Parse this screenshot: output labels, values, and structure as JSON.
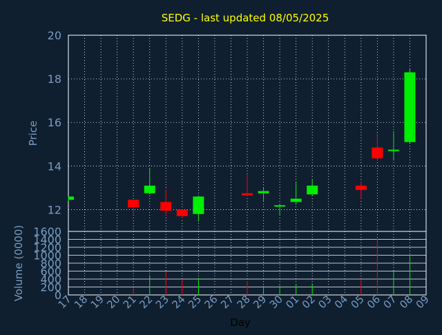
{
  "chart_data": [
    {
      "type": "candlestick",
      "title": "SEDG - last updated 08/05/2025",
      "ylabel": "Price",
      "ylim": [
        11,
        20
      ],
      "yticks": [
        12,
        14,
        16,
        18,
        20
      ],
      "grid": true,
      "colors": {
        "up": "#00ee00",
        "down": "#ff0000",
        "title": "#ffff00",
        "axis_text": "#7a9cc0",
        "background": "#0f1f30",
        "grid": "#ffffff"
      },
      "categories": [
        "17",
        "18",
        "19",
        "20",
        "21",
        "22",
        "23",
        "24",
        "25",
        "26",
        "27",
        "28",
        "29",
        "30",
        "01",
        "02",
        "03",
        "04",
        "05",
        "06",
        "07",
        "08",
        "09"
      ],
      "candles": [
        {
          "x": "17",
          "open": 12.45,
          "high": 12.6,
          "low": 12.4,
          "close": 12.6
        },
        {
          "x": "21",
          "open": 12.45,
          "high": 12.45,
          "low": 11.8,
          "close": 12.1
        },
        {
          "x": "22",
          "open": 12.75,
          "high": 13.9,
          "low": 12.7,
          "close": 13.1
        },
        {
          "x": "23",
          "open": 12.35,
          "high": 12.9,
          "low": 11.7,
          "close": 11.95
        },
        {
          "x": "24",
          "open": 12.0,
          "high": 12.0,
          "low": 11.6,
          "close": 11.7
        },
        {
          "x": "25",
          "open": 11.8,
          "high": 12.6,
          "low": 11.45,
          "close": 12.6
        },
        {
          "x": "28",
          "open": 12.75,
          "high": 13.6,
          "low": 12.6,
          "close": 12.65
        },
        {
          "x": "29",
          "open": 12.75,
          "high": 13.0,
          "low": 12.4,
          "close": 12.85
        },
        {
          "x": "30",
          "open": 12.15,
          "high": 12.25,
          "low": 11.75,
          "close": 12.2
        },
        {
          "x": "01",
          "open": 12.35,
          "high": 13.3,
          "low": 12.25,
          "close": 12.5
        },
        {
          "x": "02",
          "open": 12.7,
          "high": 13.4,
          "low": 12.65,
          "close": 13.1
        },
        {
          "x": "05",
          "open": 13.1,
          "high": 13.3,
          "low": 12.5,
          "close": 12.9
        },
        {
          "x": "06",
          "open": 14.85,
          "high": 15.5,
          "low": 14.25,
          "close": 14.35
        },
        {
          "x": "07",
          "open": 14.7,
          "high": 15.6,
          "low": 14.25,
          "close": 14.75
        },
        {
          "x": "08",
          "open": 15.1,
          "high": 18.45,
          "low": 15.05,
          "close": 18.3
        }
      ]
    },
    {
      "type": "bar",
      "ylabel": "Volume (0000)",
      "xlabel": "Day",
      "ylim": [
        0,
        1600
      ],
      "yticks": [
        0,
        200,
        400,
        600,
        800,
        1000,
        1200,
        1400,
        1600
      ],
      "grid": true,
      "bars": [
        {
          "x": "21",
          "value": 190,
          "direction": "down"
        },
        {
          "x": "22",
          "value": 500,
          "direction": "up"
        },
        {
          "x": "23",
          "value": 590,
          "direction": "down"
        },
        {
          "x": "24",
          "value": 400,
          "direction": "down"
        },
        {
          "x": "25",
          "value": 430,
          "direction": "up"
        },
        {
          "x": "28",
          "value": 350,
          "direction": "down"
        },
        {
          "x": "29",
          "value": 230,
          "direction": "up"
        },
        {
          "x": "30",
          "value": 240,
          "direction": "up"
        },
        {
          "x": "01",
          "value": 280,
          "direction": "up"
        },
        {
          "x": "02",
          "value": 290,
          "direction": "up"
        },
        {
          "x": "05",
          "value": 400,
          "direction": "down"
        },
        {
          "x": "06",
          "value": 1420,
          "direction": "down"
        },
        {
          "x": "07",
          "value": 590,
          "direction": "up"
        },
        {
          "x": "08",
          "value": 1000,
          "direction": "up"
        }
      ]
    }
  ]
}
